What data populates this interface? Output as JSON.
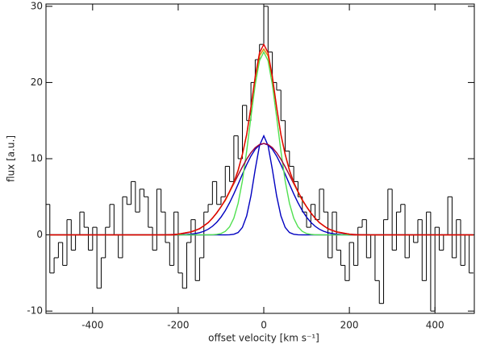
{
  "chart_data": {
    "type": "step",
    "x_label": "offset velocity [km s⁻¹]",
    "y_label": "flux [a.u.]",
    "xlim": [
      -509,
      492
    ],
    "ylim": [
      -10.3,
      30.3
    ],
    "xticks": [
      -400,
      -200,
      0,
      200,
      400
    ],
    "yticks": [
      -10,
      0,
      10,
      20,
      30
    ],
    "x": [
      -505,
      -495,
      -485,
      -475,
      -465,
      -455,
      -445,
      -435,
      -425,
      -415,
      -405,
      -395,
      -385,
      -375,
      -365,
      -355,
      -345,
      -335,
      -325,
      -315,
      -305,
      -295,
      -285,
      -275,
      -265,
      -255,
      -245,
      -235,
      -225,
      -215,
      -205,
      -195,
      -185,
      -175,
      -165,
      -155,
      -145,
      -135,
      -125,
      -115,
      -105,
      -95,
      -85,
      -75,
      -65,
      -55,
      -45,
      -35,
      -25,
      -15,
      -5,
      5,
      15,
      25,
      35,
      45,
      55,
      65,
      75,
      85,
      95,
      105,
      115,
      125,
      135,
      145,
      155,
      165,
      175,
      185,
      195,
      205,
      215,
      225,
      235,
      245,
      255,
      265,
      275,
      285,
      295,
      305,
      315,
      325,
      335,
      345,
      355,
      365,
      375,
      385,
      395,
      405,
      415,
      425,
      435,
      445,
      455,
      465,
      475,
      485
    ],
    "series": [
      {
        "color": "#000000",
        "values": [
          4,
          -5,
          -3,
          -1,
          -4,
          2,
          -2,
          0,
          3,
          1,
          -2,
          1,
          -7,
          -3,
          1,
          4,
          0,
          -3,
          5,
          4,
          7,
          3,
          6,
          5,
          1,
          -2,
          6,
          3,
          -1,
          -4,
          3,
          -5,
          -7,
          -1,
          2,
          -6,
          -3,
          3,
          4,
          7,
          4,
          5,
          9,
          7,
          13,
          10,
          17,
          15,
          20,
          23,
          25,
          30,
          24,
          20,
          19,
          15,
          11,
          9,
          7,
          5,
          3,
          1,
          4,
          2,
          6,
          3,
          -3,
          3,
          -2,
          -4,
          -6,
          -1,
          -4,
          1,
          2,
          -3,
          0,
          -6,
          -9,
          2,
          6,
          -2,
          3,
          4,
          -3,
          0,
          -1,
          2,
          -6,
          3,
          -10,
          1,
          -2,
          0,
          5,
          -3,
          2,
          -4,
          0,
          -5
        ]
      }
    ],
    "fits": {
      "x": [
        -500,
        -250,
        -240,
        -230,
        -220,
        -210,
        -200,
        -190,
        -180,
        -170,
        -160,
        -150,
        -140,
        -130,
        -120,
        -110,
        -100,
        -90,
        -80,
        -70,
        -60,
        -50,
        -40,
        -30,
        -20,
        -10,
        0,
        10,
        20,
        30,
        40,
        50,
        60,
        70,
        80,
        90,
        100,
        110,
        120,
        130,
        140,
        150,
        160,
        170,
        180,
        190,
        200,
        210,
        220,
        230,
        240,
        250,
        490
      ],
      "series": [
        {
          "color": "#0000c0",
          "values": [
            0,
            0,
            0,
            0,
            0,
            0,
            0,
            0,
            0,
            0,
            0,
            0,
            0,
            0,
            0,
            0,
            0,
            0,
            0.02,
            0.08,
            0.31,
            0.98,
            2.49,
            5.13,
            8.6,
            11.72,
            13,
            11.72,
            8.6,
            5.13,
            2.49,
            0.98,
            0.31,
            0.08,
            0.02,
            0,
            0,
            0,
            0,
            0,
            0,
            0,
            0,
            0,
            0,
            0,
            0,
            0,
            0,
            0,
            0,
            0,
            0
          ]
        },
        {
          "color": "#0000c0",
          "values": [
            0,
            0,
            0,
            0,
            0,
            0,
            0.01,
            0.03,
            0.05,
            0.1,
            0.17,
            0.29,
            0.47,
            0.74,
            1.13,
            1.65,
            2.33,
            3.18,
            4.21,
            5.38,
            6.65,
            7.96,
            9.23,
            10.35,
            11.24,
            11.8,
            12,
            11.8,
            11.24,
            10.35,
            9.23,
            7.96,
            6.65,
            5.38,
            4.21,
            3.18,
            2.33,
            1.65,
            1.13,
            0.74,
            0.47,
            0.29,
            0.17,
            0.1,
            0.05,
            0.03,
            0.01,
            0,
            0,
            0,
            0,
            0,
            0
          ]
        },
        {
          "color": "#50e050",
          "values": [
            0,
            0,
            0,
            0,
            0,
            0,
            0,
            0,
            0,
            0,
            0,
            0,
            0,
            0.01,
            0.02,
            0.07,
            0.18,
            0.46,
            1.05,
            2.19,
            4.14,
            7.08,
            10.99,
            15.47,
            19.74,
            22.86,
            24,
            22.86,
            19.74,
            15.47,
            10.99,
            7.08,
            4.14,
            2.19,
            1.05,
            0.46,
            0.18,
            0.07,
            0.02,
            0.01,
            0,
            0,
            0,
            0,
            0,
            0,
            0,
            0,
            0,
            0,
            0,
            0,
            0
          ]
        },
        {
          "color": "#a0003a",
          "values": [
            0,
            0,
            0.01,
            0.02,
            0.04,
            0.07,
            0.11,
            0.17,
            0.26,
            0.39,
            0.58,
            0.84,
            1.18,
            1.62,
            2.18,
            2.87,
            3.68,
            4.6,
            5.63,
            6.72,
            7.84,
            8.93,
            9.93,
            10.79,
            11.45,
            11.86,
            12,
            11.86,
            11.45,
            10.79,
            9.93,
            8.93,
            7.84,
            6.72,
            5.63,
            4.6,
            3.68,
            2.87,
            2.18,
            1.62,
            1.18,
            0.84,
            0.58,
            0.39,
            0.26,
            0.17,
            0.11,
            0.07,
            0.04,
            0.02,
            0.01,
            0,
            0
          ]
        },
        {
          "color": "#e08a00",
          "values": [
            0,
            0,
            0,
            0,
            0,
            0,
            0.1,
            0.2,
            0.3,
            0.4,
            0.6,
            0.8,
            1.2,
            1.6,
            2.2,
            2.9,
            3.7,
            4.5,
            5.6,
            6.8,
            8.4,
            10.5,
            13.1,
            16.7,
            20.6,
            23.5,
            24.4,
            23.5,
            20.6,
            16.7,
            13.1,
            10.5,
            8.4,
            6.8,
            5.6,
            4.5,
            3.7,
            2.9,
            2.2,
            1.6,
            1.2,
            0.8,
            0.6,
            0.4,
            0.3,
            0.2,
            0.1,
            0,
            0,
            0,
            0,
            0,
            0
          ]
        },
        {
          "color": "#e00000",
          "values": [
            0,
            0,
            0,
            0,
            0,
            0,
            0.1,
            0.2,
            0.3,
            0.4,
            0.6,
            0.8,
            1.2,
            1.6,
            2.2,
            2.9,
            3.7,
            4.6,
            5.7,
            6.9,
            8.5,
            10.6,
            13.2,
            16.8,
            20.8,
            23.9,
            25,
            23.9,
            20.8,
            16.8,
            13.2,
            10.6,
            8.5,
            6.9,
            5.7,
            4.6,
            3.7,
            2.9,
            2.2,
            1.6,
            1.2,
            0.8,
            0.6,
            0.4,
            0.3,
            0.2,
            0.1,
            0,
            0,
            0,
            0,
            0,
            0
          ]
        }
      ]
    }
  }
}
